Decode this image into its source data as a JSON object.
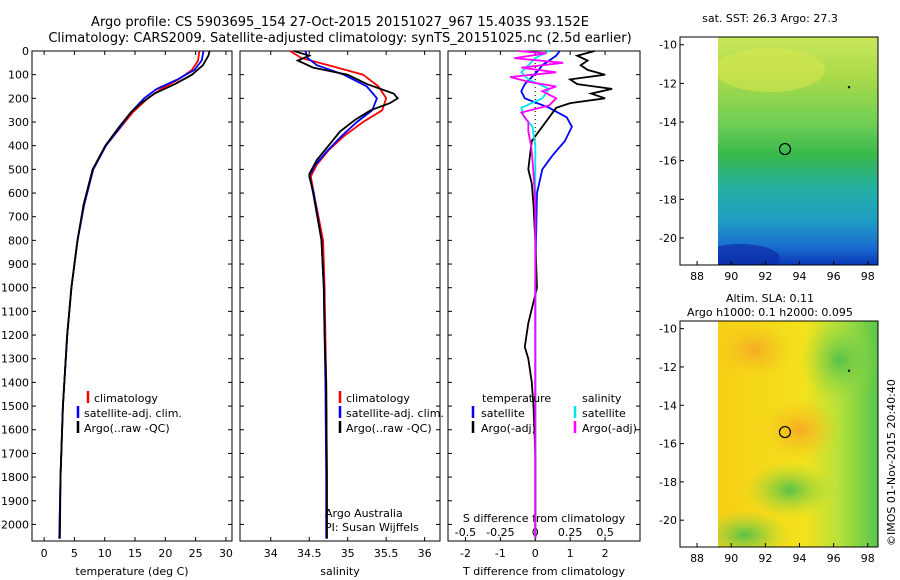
{
  "title_line1": "Argo profile: CS 5903695_154 27-Oct-2015 20151027_967 15.403S 93.152E",
  "title_line2": "Climatology: CARS2009. Satellite-adjusted climatology: synTS_20151025.nc (2.5d earlier)",
  "depth_ticks": [
    "0",
    "100",
    "200",
    "300",
    "400",
    "500",
    "600",
    "700",
    "800",
    "900",
    "1000",
    "1100",
    "1200",
    "1300",
    "1400",
    "1500",
    "1600",
    "1700",
    "1800",
    "1900",
    "2000"
  ],
  "colors": {
    "climatology": "#ff0000",
    "satellite": "#0000ff",
    "argo": "#000000",
    "sal_satellite": "#00e5ee",
    "sal_argo": "#ff00ff"
  },
  "legend_profile": {
    "climatology": "climatology",
    "satellite": "satellite-adj. clim.",
    "argo": "Argo(..raw -QC)"
  },
  "legend_diff": {
    "temp_header": "temperature",
    "sal_header": "salinity",
    "satellite": "satellite",
    "argo": "Argo(-adj)"
  },
  "credit_line1": "Argo Australia",
  "credit_line2": "PI: Susan Wijffels",
  "map_top_title": "sat. SST: 26.3 Argo: 27.3",
  "map_bottom_title1": "Altim. SLA: 0.11",
  "map_bottom_title2": "Argo h1000: 0.1 h2000: 0.095",
  "imos_stamp": "©IMOS 01-Nov-2015 20:40:40",
  "chart_data": [
    {
      "type": "line",
      "xlabel": "temperature (deg C)",
      "ylabel": "",
      "xlim": [
        -2,
        31
      ],
      "ylim": [
        2070,
        0
      ],
      "xticks": [
        0,
        5,
        10,
        15,
        20,
        25,
        30
      ],
      "xtick_labels": [
        "0",
        "5",
        "10",
        "15",
        "20",
        "25",
        "30"
      ],
      "series": [
        {
          "name": "climatology",
          "color": "#ff0000",
          "depth": [
            0,
            40,
            80,
            120,
            160,
            200,
            260,
            320,
            400,
            500,
            650,
            800,
            1000,
            1200,
            1500,
            1800,
            2060
          ],
          "values": [
            25.6,
            25.4,
            24.4,
            22.2,
            19.3,
            17.1,
            14.6,
            12.7,
            10.2,
            8.1,
            6.6,
            5.5,
            4.5,
            3.8,
            3.1,
            2.7,
            2.5
          ]
        },
        {
          "name": "satellite-adj. clim.",
          "color": "#0000ff",
          "depth": [
            0,
            40,
            80,
            120,
            160,
            200,
            260,
            320,
            400,
            500,
            650,
            800,
            1000,
            1200,
            1500,
            1800,
            2060
          ],
          "values": [
            26.3,
            26.0,
            24.8,
            22.0,
            18.6,
            16.5,
            14.3,
            12.6,
            10.2,
            8.1,
            6.6,
            5.5,
            4.5,
            3.8,
            3.1,
            2.7,
            2.5
          ]
        },
        {
          "name": "Argo(..raw -QC)",
          "color": "#000000",
          "depth": [
            0,
            20,
            60,
            100,
            140,
            180,
            220,
            260,
            320,
            400,
            500,
            650,
            800,
            1000,
            1200,
            1500,
            1800,
            2060
          ],
          "values": [
            27.3,
            27.1,
            26.2,
            24.4,
            21.6,
            18.2,
            16.0,
            14.3,
            12.4,
            10.1,
            8.0,
            6.5,
            5.5,
            4.5,
            3.8,
            3.1,
            2.7,
            2.6
          ]
        }
      ]
    },
    {
      "type": "line",
      "xlabel": "salinity",
      "ylabel": "",
      "xlim": [
        33.6,
        36.2
      ],
      "ylim": [
        2070,
        0
      ],
      "xticks": [
        34,
        34.5,
        35,
        35.5,
        36
      ],
      "xtick_labels": [
        "34",
        "34.5",
        "35",
        "35.5",
        "36"
      ],
      "series": [
        {
          "name": "climatology",
          "color": "#ff0000",
          "depth": [
            0,
            30,
            60,
            100,
            150,
            200,
            250,
            300,
            360,
            420,
            480,
            530,
            600,
            800,
            1000,
            1400,
            1800,
            2060
          ],
          "values": [
            34.25,
            34.4,
            34.75,
            35.2,
            35.4,
            35.5,
            35.45,
            35.2,
            34.95,
            34.75,
            34.6,
            34.52,
            34.56,
            34.68,
            34.7,
            34.72,
            34.73,
            34.73
          ]
        },
        {
          "name": "satellite-adj. clim.",
          "color": "#0000ff",
          "depth": [
            0,
            30,
            60,
            100,
            150,
            200,
            250,
            300,
            360,
            420,
            480,
            530,
            600,
            800,
            1000,
            1400,
            1800,
            2060
          ],
          "values": [
            34.45,
            34.48,
            34.6,
            34.95,
            35.25,
            35.38,
            35.32,
            35.12,
            34.92,
            34.74,
            34.58,
            34.5,
            34.56,
            34.66,
            34.69,
            34.71,
            34.72,
            34.72
          ]
        },
        {
          "name": "Argo(..raw -QC)",
          "color": "#000000",
          "depth": [
            0,
            20,
            40,
            70,
            100,
            140,
            180,
            200,
            220,
            250,
            290,
            340,
            400,
            460,
            520,
            600,
            800,
            1000,
            1200,
            1400,
            1800,
            2060
          ],
          "values": [
            34.3,
            34.5,
            34.35,
            34.55,
            35.0,
            35.25,
            35.6,
            35.65,
            35.55,
            35.3,
            35.1,
            34.9,
            34.75,
            34.6,
            34.5,
            34.55,
            34.66,
            34.69,
            34.7,
            34.72,
            34.73,
            34.73
          ]
        }
      ]
    },
    {
      "type": "line",
      "xlabel": "T difference from climatology",
      "xlabel_top": "S difference from climatology",
      "ylabel": "",
      "xlim": [
        -2.5,
        3
      ],
      "ylim": [
        2070,
        0
      ],
      "xticks": [
        -2,
        -1,
        0,
        1,
        2
      ],
      "xtick_labels": [
        "-2",
        "-1",
        "0",
        "1",
        "2"
      ],
      "xticks_s": [
        -0.5,
        -0.25,
        0,
        0.25,
        0.5
      ],
      "xtick_labels_s": [
        "-0.5",
        "-0.25",
        "0",
        "0.25",
        "0.5"
      ],
      "series": [
        {
          "name": "satellite",
          "quantity": "temperature",
          "color": "#0000ff",
          "depth": [
            0,
            20,
            40,
            60,
            80,
            110,
            140,
            170,
            200,
            240,
            280,
            320,
            380,
            440,
            500,
            600,
            800,
            1000,
            1400,
            2060
          ],
          "values": [
            0.7,
            0.6,
            0.4,
            0.2,
            0.1,
            -0.1,
            -0.3,
            -0.4,
            -0.3,
            0.4,
            0.9,
            1.05,
            0.85,
            0.5,
            0.2,
            0.05,
            0.02,
            0.0,
            0.0,
            0.0
          ]
        },
        {
          "name": "Argo(-adj)",
          "quantity": "temperature",
          "color": "#000000",
          "depth": [
            0,
            20,
            40,
            60,
            80,
            100,
            120,
            140,
            160,
            180,
            200,
            220,
            240,
            280,
            320,
            380,
            440,
            500,
            560,
            650,
            800,
            1000,
            1150,
            1250,
            1300,
            1400,
            1500,
            1700,
            2060
          ],
          "values": [
            1.7,
            1.2,
            1.5,
            1.3,
            1.5,
            2.0,
            1.0,
            1.2,
            2.2,
            1.6,
            2.0,
            1.0,
            0.6,
            0.4,
            0.2,
            -0.1,
            -0.15,
            -0.2,
            -0.1,
            -0.05,
            0.0,
            0.05,
            -0.2,
            -0.3,
            -0.2,
            -0.1,
            -0.05,
            0.0,
            0.0
          ]
        },
        {
          "name": "satellite",
          "quantity": "salinity",
          "color": "#00e5ee",
          "depth": [
            0,
            30,
            60,
            90,
            120,
            160,
            200,
            240,
            280,
            320,
            400,
            500,
            800,
            2060
          ],
          "values": [
            0.1,
            0.0,
            -0.05,
            -0.1,
            -0.05,
            0.1,
            0.05,
            -0.1,
            -0.08,
            -0.02,
            0.0,
            0.0,
            0.0,
            0.0
          ]
        },
        {
          "name": "Argo(-adj)",
          "quantity": "salinity",
          "color": "#ff00ff",
          "depth": [
            0,
            10,
            30,
            50,
            70,
            90,
            110,
            130,
            150,
            170,
            200,
            230,
            260,
            300,
            340,
            400,
            460,
            540,
            650,
            800,
            1000,
            2060
          ],
          "values": [
            -0.12,
            0.08,
            -0.15,
            0.2,
            -0.1,
            0.15,
            -0.18,
            -0.05,
            0.15,
            0.05,
            0.15,
            0.1,
            -0.1,
            -0.05,
            -0.05,
            -0.03,
            -0.02,
            -0.01,
            0.0,
            0.0,
            0.0,
            0.0
          ]
        }
      ]
    },
    {
      "type": "heatmap",
      "title": "sat. SST: 26.3 Argo: 27.3",
      "xlim": [
        87,
        98.6
      ],
      "ylim": [
        -21.4,
        -9.6
      ],
      "xticks": [
        88,
        90,
        92,
        94,
        96,
        98
      ],
      "yticks": [
        -10,
        -12,
        -14,
        -16,
        -18,
        -20
      ],
      "xtick_labels": [
        "88",
        "90",
        "92",
        "94",
        "96",
        "98"
      ],
      "ytick_labels": [
        "-10",
        "-12",
        "-14",
        "-16",
        "-18",
        "-20"
      ],
      "data_xlim": [
        90,
        98.6
      ],
      "argo_position": [
        93.15,
        -15.4
      ],
      "secondary_marker": [
        96.9,
        -12.2
      ]
    },
    {
      "type": "heatmap",
      "title": "Argo h1000: 0.1 h2000: 0.095",
      "xlim": [
        87,
        98.6
      ],
      "ylim": [
        -21.4,
        -9.6
      ],
      "xticks": [
        88,
        90,
        92,
        94,
        96,
        98
      ],
      "yticks": [
        -10,
        -12,
        -14,
        -16,
        -18,
        -20
      ],
      "xtick_labels": [
        "88",
        "90",
        "92",
        "94",
        "96",
        "98"
      ],
      "ytick_labels": [
        "-10",
        "-12",
        "-14",
        "-16",
        "-18",
        "-20"
      ],
      "data_xlim": [
        90,
        98.6
      ],
      "argo_position": [
        93.15,
        -15.4
      ],
      "secondary_marker": [
        96.9,
        -12.2
      ]
    }
  ]
}
